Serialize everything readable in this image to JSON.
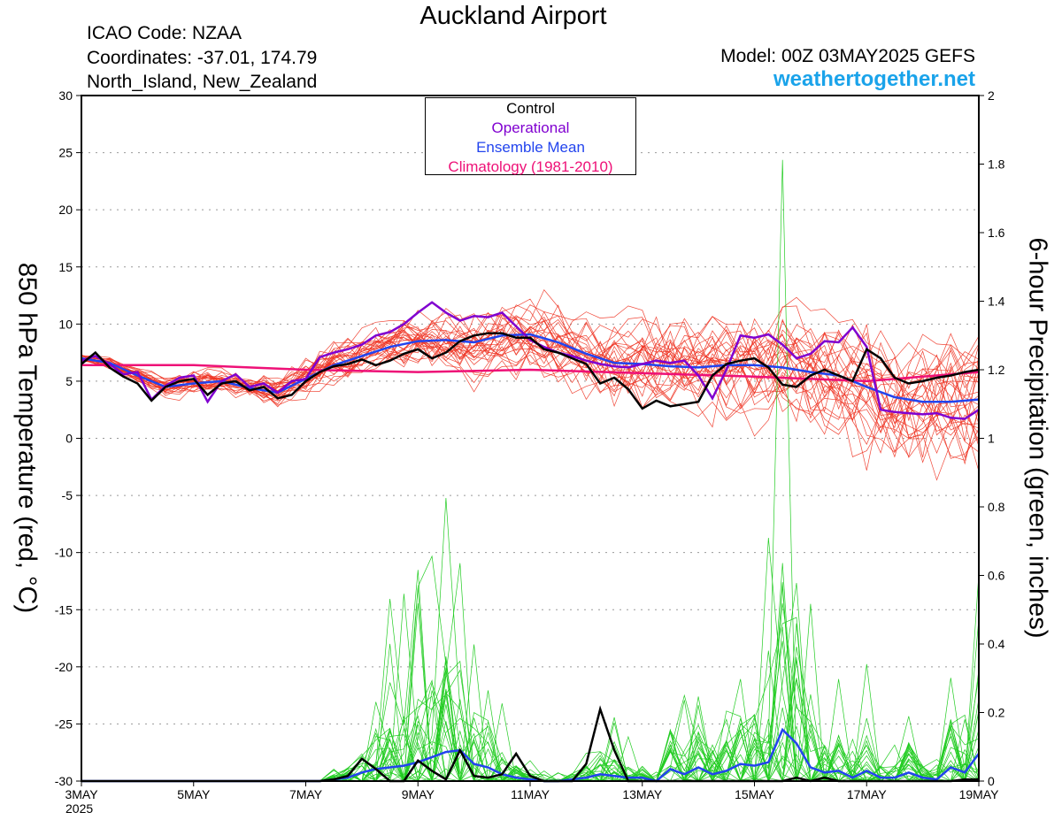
{
  "header": {
    "title": "Auckland Airport",
    "icao": "ICAO Code: NZAA",
    "coordinates": "Coordinates: -37.01, 174.79",
    "region": "North_Island, New_Zealand",
    "model": "Model: 00Z 03MAY2025 GEFS",
    "site": "weathertogether.net"
  },
  "chart_data": {
    "type": "line",
    "title": "Auckland Airport",
    "ylabel_left": "850 hPa Temperature (red, °C)",
    "ylabel_right": "6-hour Precipitation (green, inches)",
    "x_ticks": [
      "3MAY",
      "5MAY",
      "7MAY",
      "9MAY",
      "11MAY",
      "13MAY",
      "15MAY",
      "17MAY",
      "19MAY"
    ],
    "x_year": "2025",
    "xlim_days": [
      3,
      19
    ],
    "ylim_left": [
      -30,
      30
    ],
    "ylim_right": [
      0,
      2
    ],
    "y_ticks_left": [
      "30",
      "25",
      "20",
      "15",
      "10",
      "5",
      "0",
      "-5",
      "-10",
      "-15",
      "-20",
      "-25",
      "-30"
    ],
    "y_ticks_right": [
      "2",
      "1.8",
      "1.6",
      "1.4",
      "1.2",
      "1",
      "0.8",
      "0.6",
      "0.4",
      "0.2",
      "0"
    ],
    "grid": true,
    "legend_position": "top-center",
    "legend": [
      {
        "name": "Control",
        "color": "#000000"
      },
      {
        "name": "Operational",
        "color": "#8000d0"
      },
      {
        "name": "Ensemble Mean",
        "color": "#2244ee"
      },
      {
        "name": "Climatology (1981-2010)",
        "color": "#ee1177"
      }
    ],
    "colors": {
      "control": "#000000",
      "operational": "#8000d0",
      "ensemble_mean": "#2244ee",
      "climatology": "#ee1177",
      "members_temp": "#ee3322",
      "members_precip": "#22cc22"
    },
    "temperature": {
      "control": {
        "x": [
          3.0,
          3.25,
          3.5,
          3.75,
          4.0,
          4.25,
          4.5,
          4.75,
          5.0,
          5.25,
          5.5,
          5.75,
          6.0,
          6.25,
          6.5,
          6.75,
          7.0,
          7.25,
          7.5,
          7.75,
          8.0,
          8.25,
          8.5,
          8.75,
          9.0,
          9.25,
          9.5,
          9.75,
          10.0,
          10.25,
          10.5,
          10.75,
          11.0,
          11.25,
          11.5,
          11.75,
          12.0,
          12.25,
          12.5,
          12.75,
          13.0,
          13.25,
          13.5,
          13.75,
          14.0,
          14.25,
          14.5,
          14.75,
          15.0,
          15.25,
          15.5,
          15.75,
          16.0,
          16.25,
          16.5,
          16.75,
          17.0,
          17.25,
          17.5,
          17.75,
          18.0,
          18.25,
          18.5,
          18.75,
          19.0
        ],
        "y": [
          6.5,
          7.5,
          6.2,
          5.4,
          4.8,
          3.3,
          4.5,
          5.0,
          5.2,
          3.8,
          4.8,
          5.0,
          4.2,
          4.5,
          3.5,
          3.8,
          5.0,
          5.8,
          6.3,
          6.5,
          6.9,
          6.4,
          6.8,
          7.4,
          7.8,
          7.0,
          7.5,
          8.5,
          9.0,
          9.2,
          9.2,
          8.8,
          8.8,
          7.8,
          7.5,
          7.0,
          6.5,
          4.8,
          5.3,
          4.3,
          2.6,
          3.3,
          2.8,
          3.0,
          3.2,
          5.5,
          6.5,
          6.8,
          7.0,
          6.2,
          4.7,
          4.5,
          5.5,
          6.0,
          5.5,
          5.0,
          7.8,
          7.0,
          5.3,
          4.8,
          5.0,
          5.3,
          5.5,
          5.8,
          6.0
        ]
      },
      "operational": {
        "x": [
          3.0,
          3.25,
          3.5,
          3.75,
          4.0,
          4.25,
          4.5,
          4.75,
          5.0,
          5.25,
          5.5,
          5.75,
          6.0,
          6.25,
          6.5,
          6.75,
          7.0,
          7.25,
          7.5,
          7.75,
          8.0,
          8.25,
          8.5,
          8.75,
          9.0,
          9.25,
          9.5,
          9.75,
          10.0,
          10.25,
          10.5,
          10.75,
          11.0,
          11.25,
          11.5,
          11.75,
          12.0,
          12.25,
          12.5,
          12.75,
          13.0,
          13.25,
          13.5,
          13.75,
          14.0,
          14.25,
          14.5,
          14.75,
          15.0,
          15.25,
          15.5,
          15.75,
          16.0,
          16.25,
          16.5,
          16.75,
          17.0,
          17.25,
          17.5,
          17.75,
          18.0,
          18.25,
          18.5,
          18.75,
          19.0
        ],
        "y": [
          6.8,
          7.2,
          6.5,
          5.6,
          5.8,
          3.4,
          4.6,
          5.3,
          5.5,
          3.2,
          5.0,
          5.6,
          4.5,
          4.8,
          4.0,
          5.0,
          5.2,
          7.1,
          7.5,
          7.8,
          8.2,
          9.0,
          9.3,
          10.0,
          11.0,
          11.9,
          11.0,
          10.3,
          10.7,
          10.6,
          11.0,
          9.8,
          8.6,
          8.0,
          7.5,
          7.2,
          6.8,
          6.5,
          6.3,
          6.2,
          6.5,
          6.8,
          6.6,
          6.8,
          5.5,
          3.5,
          6.0,
          9.0,
          8.8,
          9.1,
          8.2,
          7.0,
          7.4,
          8.5,
          8.4,
          9.7,
          8.0,
          2.5,
          2.3,
          2.2,
          2.1,
          2.2,
          1.8,
          1.7,
          2.5
        ]
      },
      "ensemble_mean": {
        "x": [
          3.0,
          3.5,
          4.0,
          4.5,
          5.0,
          5.5,
          6.0,
          6.5,
          7.0,
          7.5,
          8.0,
          8.5,
          9.0,
          9.5,
          10.0,
          10.5,
          11.0,
          11.5,
          12.0,
          12.5,
          13.0,
          13.5,
          14.0,
          14.5,
          15.0,
          15.5,
          16.0,
          16.5,
          17.0,
          17.5,
          18.0,
          18.5,
          19.0
        ],
        "y": [
          7.0,
          6.6,
          5.5,
          4.5,
          4.8,
          5.0,
          4.4,
          4.0,
          5.2,
          6.4,
          7.2,
          8.0,
          8.5,
          8.6,
          8.4,
          9.0,
          9.1,
          8.4,
          7.4,
          6.6,
          6.5,
          6.3,
          6.2,
          6.4,
          6.4,
          6.2,
          5.8,
          5.5,
          4.5,
          3.6,
          3.2,
          3.2,
          3.4
        ]
      },
      "climatology": {
        "x": [
          3,
          5,
          7,
          9,
          11,
          13,
          15,
          17,
          19
        ],
        "y": [
          6.4,
          6.4,
          6.0,
          5.8,
          6.0,
          5.7,
          5.4,
          5.0,
          5.8
        ]
      },
      "members_count": 30
    },
    "precipitation": {
      "control": {
        "x": [
          3.0,
          3.25,
          3.5,
          3.75,
          4.0,
          4.25,
          4.5,
          4.75,
          5.0,
          5.25,
          5.5,
          5.75,
          6.0,
          6.25,
          6.5,
          6.75,
          7.0,
          7.25,
          7.5,
          7.75,
          8.0,
          8.25,
          8.5,
          8.75,
          9.0,
          9.25,
          9.5,
          9.75,
          10.0,
          10.25,
          10.5,
          10.75,
          11.0,
          11.25,
          11.5,
          11.75,
          12.0,
          12.25,
          12.5,
          12.75,
          13.0,
          13.25,
          13.5,
          13.75,
          14.0,
          14.25,
          14.5,
          14.75,
          15.0,
          15.25,
          15.5,
          15.75,
          16.0,
          16.25,
          16.5,
          16.75,
          17.0,
          17.25,
          17.5,
          17.75,
          18.0,
          18.25,
          18.5,
          18.75,
          19.0
        ],
        "y": [
          0,
          0,
          0,
          0,
          0,
          0,
          0,
          0,
          0,
          0,
          0,
          0,
          0,
          0,
          0,
          0,
          0,
          0,
          0.005,
          0.015,
          0.065,
          0.035,
          0,
          0,
          0.06,
          0.03,
          0.005,
          0.09,
          0.015,
          0.01,
          0.02,
          0.08,
          0.015,
          0.0,
          0.0,
          0.0,
          0.05,
          0.21,
          0.09,
          0.0,
          0.0,
          0.0,
          0.0,
          0.0,
          0.0,
          0.0,
          0.0,
          0.0,
          0.0,
          0.0,
          0.0,
          0.01,
          0.0,
          0.01,
          0.0,
          0.0,
          0.0,
          0.0,
          0.0,
          0.0,
          0.0,
          0.0,
          0.0,
          0.005,
          0.005
        ]
      },
      "ensemble_mean": {
        "x": [
          3.0,
          3.25,
          3.5,
          3.75,
          4.0,
          4.25,
          4.5,
          4.75,
          5.0,
          5.25,
          5.5,
          5.75,
          6.0,
          6.25,
          6.5,
          6.75,
          7.0,
          7.25,
          7.5,
          7.75,
          8.0,
          8.25,
          8.5,
          8.75,
          9.0,
          9.25,
          9.5,
          9.75,
          10.0,
          10.25,
          10.5,
          10.75,
          11.0,
          11.25,
          11.5,
          11.75,
          12.0,
          12.25,
          12.5,
          12.75,
          13.0,
          13.25,
          13.5,
          13.75,
          14.0,
          14.25,
          14.5,
          14.75,
          15.0,
          15.25,
          15.5,
          15.75,
          16.0,
          16.25,
          16.5,
          16.75,
          17.0,
          17.25,
          17.5,
          17.75,
          18.0,
          18.25,
          18.5,
          18.75,
          19.0
        ],
        "y": [
          0,
          0,
          0,
          0,
          0,
          0,
          0,
          0,
          0,
          0,
          0,
          0,
          0,
          0,
          0,
          0,
          0,
          0,
          0.005,
          0.01,
          0.025,
          0.035,
          0.04,
          0.045,
          0.055,
          0.07,
          0.085,
          0.09,
          0.05,
          0.04,
          0.02,
          0.01,
          0.005,
          0.0,
          0.0,
          0.005,
          0.01,
          0.02,
          0.015,
          0.01,
          0.01,
          0.0,
          0.035,
          0.02,
          0.04,
          0.02,
          0.03,
          0.05,
          0.045,
          0.055,
          0.15,
          0.11,
          0.04,
          0.025,
          0.03,
          0.01,
          0.03,
          0.01,
          0.01,
          0.025,
          0.01,
          0.005,
          0.04,
          0.025,
          0.08
        ]
      },
      "members_count": 30
    }
  }
}
